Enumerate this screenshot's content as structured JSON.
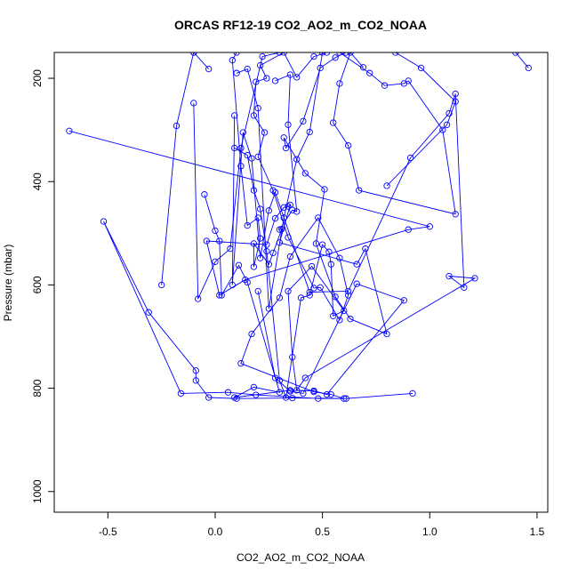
{
  "chart_data": {
    "type": "scatter",
    "title": "ORCAS RF12-19 CO2_AO2_m_CO2_NOAA",
    "xlabel": "CO2_AO2_m_CO2_NOAA",
    "ylabel": "Pressure (mbar)",
    "xlim": [
      -0.75,
      1.55
    ],
    "ylim": [
      1040,
      150
    ],
    "y_reversed": true,
    "grid": false,
    "legend": "none",
    "color": "#0000ff",
    "marker": "open-circle",
    "connect_points": true,
    "x_ticks": [
      -0.5,
      0.0,
      0.5,
      1.0,
      1.5
    ],
    "x_tick_labels": [
      "-0.5",
      "0.0",
      "0.5",
      "1.0",
      "1.5"
    ],
    "y_ticks": [
      200,
      400,
      600,
      800,
      1000
    ],
    "y_tick_labels": [
      "200",
      "400",
      "600",
      "800",
      "1000"
    ],
    "series": [
      {
        "points": [
          [
            0.92,
            810
          ],
          [
            0.61,
            820
          ],
          [
            0.36,
            819
          ],
          [
            0.1,
            820
          ],
          [
            -0.03,
            818
          ],
          [
            -0.09,
            785
          ],
          [
            -0.09,
            766
          ],
          [
            -0.31,
            653
          ],
          [
            -0.52,
            477
          ],
          [
            -0.16,
            810
          ],
          [
            0.06,
            808
          ],
          [
            0.19,
            813
          ],
          [
            0.48,
            820
          ],
          [
            0.6,
            820
          ],
          [
            0.54,
            812
          ],
          [
            0.46,
            807
          ],
          [
            0.12,
            752
          ],
          [
            0.17,
            695
          ],
          [
            0.3,
            625
          ],
          [
            0.35,
            545
          ],
          [
            0.48,
            470
          ],
          [
            0.58,
            548
          ],
          [
            0.62,
            620
          ],
          [
            0.58,
            668
          ],
          [
            0.49,
            605
          ],
          [
            0.46,
            606
          ],
          [
            0.34,
            508
          ],
          [
            0.27,
            417
          ],
          [
            0.2,
            352
          ],
          [
            0.23,
            305
          ],
          [
            0.18,
            272
          ],
          [
            0.19,
            207
          ],
          [
            0.24,
            200
          ],
          [
            0.21,
            175
          ],
          [
            0.32,
            150
          ],
          [
            0.38,
            198
          ],
          [
            0.46,
            158
          ],
          [
            0.52,
            150
          ]
        ]
      },
      {
        "points": [
          [
            -0.68,
            302
          ],
          [
            1.0,
            487
          ],
          [
            0.9,
            493
          ],
          [
            0.14,
            590
          ],
          [
            0.02,
            620
          ],
          [
            -0.04,
            515
          ],
          [
            0.24,
            522
          ],
          [
            0.28,
            471
          ],
          [
            0.32,
            450
          ],
          [
            0.34,
            448
          ],
          [
            0.35,
            445
          ],
          [
            0.3,
            518
          ],
          [
            0.66,
            560
          ],
          [
            0.7,
            530
          ],
          [
            0.8,
            695
          ],
          [
            0.63,
            666
          ],
          [
            0.56,
            623
          ],
          [
            0.47,
            520
          ],
          [
            0.51,
            415
          ],
          [
            0.42,
            384
          ],
          [
            0.32,
            315
          ],
          [
            0.33,
            335
          ],
          [
            0.41,
            283
          ],
          [
            0.49,
            180
          ],
          [
            0.56,
            160
          ],
          [
            0.61,
            150
          ]
        ]
      },
      {
        "points": [
          [
            -0.25,
            600
          ],
          [
            -0.18,
            292
          ],
          [
            -0.1,
            150
          ]
        ]
      },
      {
        "points": [
          [
            -0.05,
            425
          ],
          [
            0.0,
            495
          ],
          [
            0.02,
            515
          ],
          [
            0.03,
            620
          ],
          [
            0.11,
            562
          ],
          [
            0.15,
            595
          ],
          [
            0.3,
            808
          ],
          [
            0.18,
            798
          ],
          [
            0.09,
            818
          ],
          [
            0.35,
            804
          ],
          [
            0.46,
            805
          ],
          [
            0.52,
            812
          ],
          [
            0.88,
            630
          ],
          [
            0.66,
            598
          ],
          [
            0.41,
            810
          ],
          [
            0.35,
            806
          ],
          [
            0.28,
            780
          ],
          [
            0.2,
            612
          ]
        ]
      },
      {
        "points": [
          [
            0.1,
            190
          ],
          [
            0.15,
            182
          ],
          [
            0.2,
            258
          ],
          [
            0.25,
            646
          ],
          [
            0.32,
            470
          ],
          [
            0.38,
            357
          ],
          [
            0.44,
            304
          ],
          [
            0.5,
            150
          ]
        ]
      },
      {
        "points": [
          [
            -0.1,
            248
          ],
          [
            -0.08,
            627
          ],
          [
            0.0,
            555
          ],
          [
            0.07,
            530
          ],
          [
            0.12,
            335
          ],
          [
            0.22,
            158
          ],
          [
            0.3,
            150
          ]
        ]
      },
      {
        "points": [
          [
            -0.03,
            182
          ],
          [
            -0.1,
            150
          ]
        ]
      },
      {
        "points": [
          [
            0.09,
            272
          ],
          [
            0.08,
            600
          ],
          [
            0.13,
            305
          ],
          [
            0.17,
            355
          ],
          [
            0.21,
            548
          ],
          [
            0.25,
            456
          ],
          [
            0.28,
            421
          ],
          [
            0.44,
            614
          ],
          [
            0.62,
            612
          ],
          [
            0.91,
            354
          ],
          [
            1.09,
            268
          ],
          [
            1.12,
            230
          ],
          [
            1.16,
            605
          ],
          [
            1.09,
            583
          ],
          [
            1.21,
            587
          ],
          [
            0.42,
            780
          ],
          [
            0.38,
            804
          ],
          [
            0.36,
            740
          ],
          [
            0.34,
            612
          ],
          [
            0.45,
            564
          ],
          [
            0.6,
            650
          ],
          [
            0.55,
            660
          ],
          [
            0.54,
            560
          ],
          [
            0.53,
            536
          ],
          [
            0.5,
            522
          ],
          [
            0.44,
            620
          ],
          [
            0.4,
            625
          ],
          [
            0.33,
            818
          ],
          [
            0.3,
            785
          ],
          [
            0.24,
            535
          ],
          [
            0.21,
            453
          ],
          [
            0.18,
            417
          ],
          [
            0.15,
            349
          ],
          [
            0.09,
            335
          ]
        ]
      },
      {
        "points": [
          [
            0.8,
            408
          ],
          [
            1.08,
            290
          ],
          [
            1.12,
            245
          ],
          [
            0.96,
            180
          ],
          [
            0.84,
            150
          ]
        ]
      },
      {
        "points": [
          [
            0.69,
            179
          ],
          [
            0.63,
            150
          ],
          [
            0.58,
            210
          ],
          [
            0.55,
            286
          ],
          [
            0.62,
            330
          ],
          [
            0.67,
            417
          ],
          [
            1.12,
            463
          ],
          [
            1.06,
            300
          ],
          [
            0.9,
            205
          ],
          [
            0.88,
            210
          ],
          [
            0.79,
            214
          ],
          [
            0.72,
            190
          ],
          [
            0.58,
            150
          ]
        ]
      },
      {
        "points": [
          [
            1.46,
            180
          ],
          [
            1.4,
            150
          ]
        ]
      },
      {
        "points": [
          [
            0.28,
            205
          ],
          [
            0.35,
            193
          ],
          [
            0.34,
            290
          ],
          [
            0.38,
            458
          ],
          [
            0.36,
            455
          ],
          [
            0.3,
            493
          ],
          [
            0.31,
            492
          ],
          [
            0.27,
            538
          ],
          [
            0.25,
            560
          ],
          [
            0.18,
            520
          ],
          [
            0.18,
            565
          ],
          [
            0.21,
            510
          ],
          [
            0.2,
            470
          ],
          [
            0.15,
            485
          ],
          [
            0.12,
            370
          ],
          [
            0.08,
            165
          ],
          [
            0.1,
            150
          ]
        ]
      }
    ]
  }
}
